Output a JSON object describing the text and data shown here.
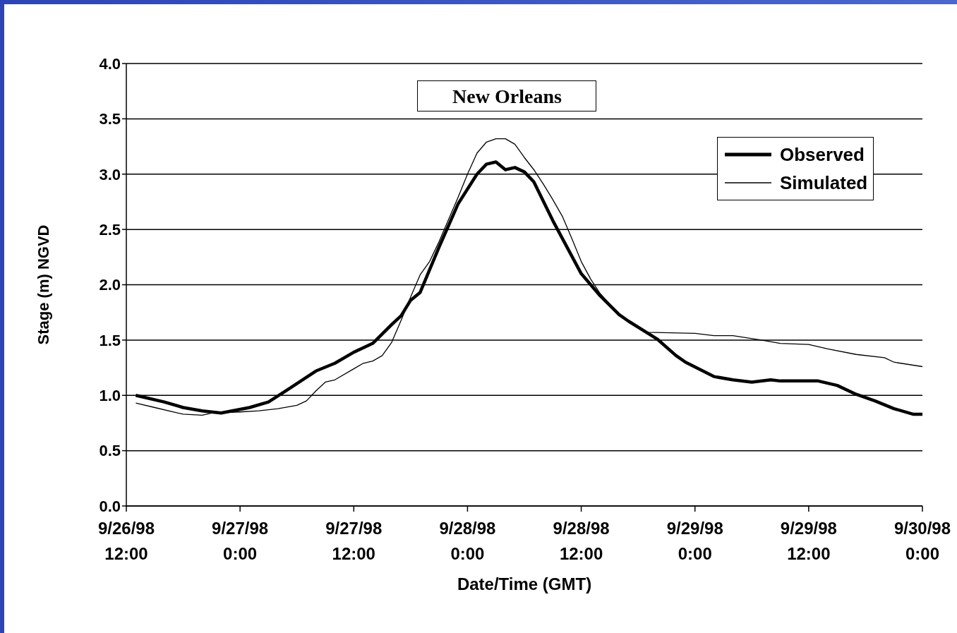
{
  "chart_data": {
    "type": "line",
    "title": "New Orleans",
    "xlabel": "Date/Time (GMT)",
    "ylabel": "Stage (m) NGVD",
    "xlim": [
      "1998-09-26T12:00",
      "1998-09-30T00:00"
    ],
    "xticks": [
      {
        "value": "1998-09-26T12:00",
        "label": "9/26/98 12:00"
      },
      {
        "value": "1998-09-27T00:00",
        "label": "9/27/98 0:00"
      },
      {
        "value": "1998-09-27T12:00",
        "label": "9/27/98 12:00"
      },
      {
        "value": "1998-09-28T00:00",
        "label": "9/28/98 0:00"
      },
      {
        "value": "1998-09-28T12:00",
        "label": "9/28/98 12:00"
      },
      {
        "value": "1998-09-29T00:00",
        "label": "9/29/98 0:00"
      },
      {
        "value": "1998-09-29T12:00",
        "label": "9/29/98 12:00"
      },
      {
        "value": "1998-09-30T00:00",
        "label": "9/30/98 0:00"
      }
    ],
    "ylim": [
      0,
      4
    ],
    "yticks": [
      {
        "value": 0,
        "label": "0.0"
      },
      0.5,
      {
        "value": 1,
        "label": "1.0"
      },
      1.5,
      {
        "value": 2,
        "label": "2.0"
      },
      2.5,
      {
        "value": 3,
        "label": "3.0"
      },
      3.5,
      {
        "value": 4,
        "label": "4.0"
      }
    ],
    "grid": "y",
    "legend": "top right",
    "marker": "none",
    "line_style": "solid",
    "series": [
      {
        "name": "Observed",
        "color": "#000000",
        "x": [
          "1998-09-26T13:00",
          "1998-09-26T16:00",
          "1998-09-26T18:00",
          "1998-09-26T20:00",
          "1998-09-26T22:00",
          "1998-09-27T01:00",
          "1998-09-27T03:00",
          "1998-09-27T05:00",
          "1998-09-27T08:00",
          "1998-09-27T10:00",
          "1998-09-27T12:00",
          "1998-09-27T14:00",
          "1998-09-27T16:00",
          "1998-09-27T17:00",
          "1998-09-27T18:00",
          "1998-09-27T19:00",
          "1998-09-27T21:00",
          "1998-09-27T23:00",
          "1998-09-28T01:00",
          "1998-09-28T02:00",
          "1998-09-28T03:00",
          "1998-09-28T04:00",
          "1998-09-28T05:00",
          "1998-09-28T06:00",
          "1998-09-28T07:00",
          "1998-09-28T09:00",
          "1998-09-28T12:00",
          "1998-09-28T14:00",
          "1998-09-28T16:00",
          "1998-09-28T17:00",
          "1998-09-28T20:00",
          "1998-09-28T22:00",
          "1998-09-28T23:00",
          "1998-09-29T02:00",
          "1998-09-29T04:00",
          "1998-09-29T06:00",
          "1998-09-29T08:00",
          "1998-09-29T09:00",
          "1998-09-29T13:00",
          "1998-09-29T15:00",
          "1998-09-29T17:00",
          "1998-09-29T19:00",
          "1998-09-29T21:00",
          "1998-09-29T23:00",
          "1998-09-30T00:00"
        ],
        "values": [
          1.0,
          0.94,
          0.89,
          0.86,
          0.84,
          0.89,
          0.94,
          1.05,
          1.22,
          1.29,
          1.39,
          1.47,
          1.64,
          1.72,
          1.86,
          1.93,
          2.34,
          2.73,
          3.0,
          3.09,
          3.11,
          3.04,
          3.06,
          3.02,
          2.93,
          2.58,
          2.1,
          1.9,
          1.73,
          1.67,
          1.51,
          1.36,
          1.3,
          1.17,
          1.14,
          1.12,
          1.14,
          1.13,
          1.13,
          1.09,
          1.01,
          0.95,
          0.88,
          0.83,
          0.83
        ]
      },
      {
        "name": "Simulated",
        "color": "#000000",
        "x": [
          "1998-09-26T13:00",
          "1998-09-26T15:00",
          "1998-09-26T17:00",
          "1998-09-26T18:00",
          "1998-09-26T20:00",
          "1998-09-26T21:00",
          "1998-09-27T00:00",
          "1998-09-27T02:00",
          "1998-09-27T04:00",
          "1998-09-27T06:00",
          "1998-09-27T07:00",
          "1998-09-27T08:00",
          "1998-09-27T09:00",
          "1998-09-27T10:00",
          "1998-09-27T12:00",
          "1998-09-27T13:00",
          "1998-09-27T14:00",
          "1998-09-27T15:00",
          "1998-09-27T16:00",
          "1998-09-27T17:00",
          "1998-09-27T18:00",
          "1998-09-27T19:00",
          "1998-09-27T20:00",
          "1998-09-27T21:00",
          "1998-09-27T22:00",
          "1998-09-27T23:00",
          "1998-09-28T00:00",
          "1998-09-28T01:00",
          "1998-09-28T02:00",
          "1998-09-28T03:00",
          "1998-09-28T04:00",
          "1998-09-28T05:00",
          "1998-09-28T06:00",
          "1998-09-28T07:00",
          "1998-09-28T08:00",
          "1998-09-28T09:00",
          "1998-09-28T10:00",
          "1998-09-28T11:00",
          "1998-09-28T12:00",
          "1998-09-28T13:00",
          "1998-09-28T14:00",
          "1998-09-28T16:00",
          "1998-09-28T19:00",
          "1998-09-29T00:00",
          "1998-09-29T02:00",
          "1998-09-29T04:00",
          "1998-09-29T07:00",
          "1998-09-29T09:00",
          "1998-09-29T12:00",
          "1998-09-29T14:00",
          "1998-09-29T17:00",
          "1998-09-29T20:00",
          "1998-09-29T21:00",
          "1998-09-30T00:00"
        ],
        "values": [
          0.93,
          0.89,
          0.85,
          0.83,
          0.82,
          0.84,
          0.85,
          0.86,
          0.88,
          0.91,
          0.95,
          1.04,
          1.12,
          1.14,
          1.24,
          1.29,
          1.31,
          1.36,
          1.48,
          1.68,
          1.89,
          2.09,
          2.21,
          2.39,
          2.59,
          2.79,
          3.0,
          3.19,
          3.29,
          3.32,
          3.32,
          3.27,
          3.15,
          3.04,
          2.91,
          2.77,
          2.62,
          2.42,
          2.21,
          2.05,
          1.92,
          1.73,
          1.57,
          1.56,
          1.54,
          1.54,
          1.5,
          1.47,
          1.46,
          1.42,
          1.37,
          1.34,
          1.3,
          1.26
        ]
      }
    ]
  }
}
